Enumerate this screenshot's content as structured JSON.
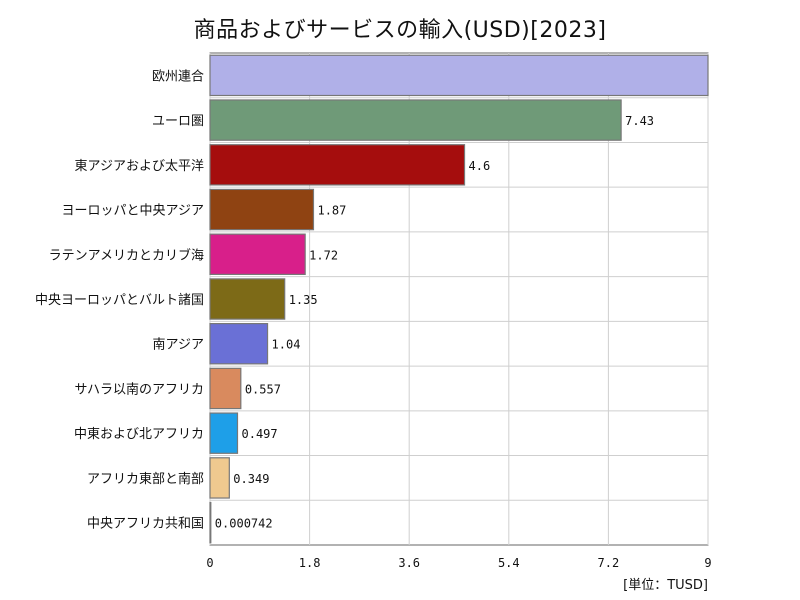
{
  "chart_data": {
    "type": "bar",
    "orientation": "horizontal",
    "title": "商品およびサービスの輸入(USD)[2023]",
    "unit_label": "[単位：TUSD]",
    "categories": [
      "欧州連合",
      "ユーロ圏",
      "東アジアおよび太平洋",
      "ヨーロッパと中央アジア",
      "ラテンアメリカとカリブ海",
      "中央ヨーロッパとバルト諸国",
      "南アジア",
      "サハラ以南のアフリカ",
      "中東および北アフリカ",
      "アフリカ東部と南部",
      "中央アフリカ共和国"
    ],
    "values": [
      9.0,
      7.43,
      4.6,
      1.87,
      1.72,
      1.35,
      1.04,
      0.557,
      0.497,
      0.349,
      0.000742
    ],
    "value_labels": [
      "",
      "7.43",
      "4.6",
      "1.87",
      "1.72",
      "1.35",
      "1.04",
      "0.557",
      "0.497",
      "0.349",
      "0.000742"
    ],
    "colors": [
      "#b0b0e8",
      "#6f9a78",
      "#a50d0d",
      "#8f4312",
      "#d81f8a",
      "#7d6a17",
      "#6a70d6",
      "#d98a5e",
      "#1e9fe8",
      "#efc98f",
      "#d0d0d0"
    ],
    "xlim": [
      0,
      9
    ],
    "xticks": [
      "0",
      "1.8",
      "3.6",
      "5.4",
      "7.2",
      "9"
    ],
    "grid": true,
    "legend": "none"
  }
}
